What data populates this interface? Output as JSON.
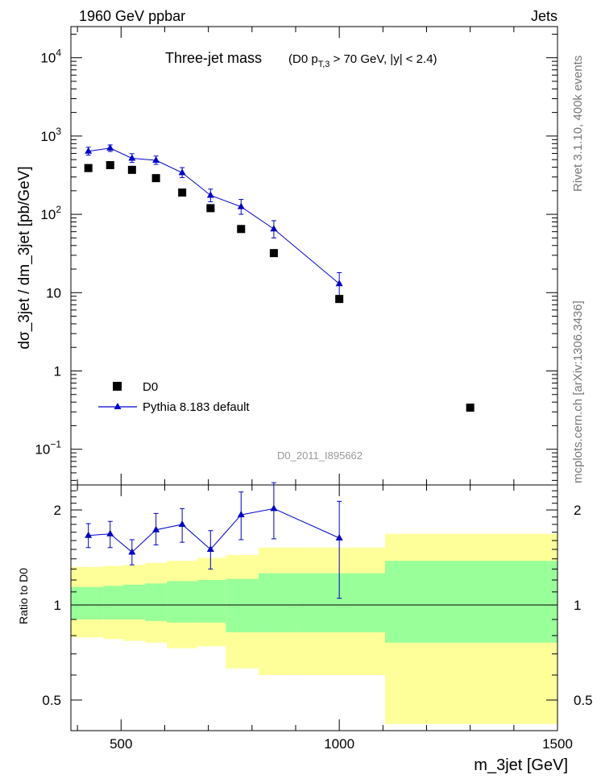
{
  "header": {
    "left": "1960 GeV ppbar",
    "right": "Jets"
  },
  "side_labels": {
    "rivet": "Rivet 3.1.10,  400k events",
    "mcplots": "mcplots.cern.ch [arXiv:1306.3436]"
  },
  "plot_title": {
    "main": "Three-jet mass",
    "cond_prefix": "(D0 p",
    "cond_sub": "T,3",
    "cond_suffix": " > 70 GeV, |y| < 2.4)"
  },
  "analysis_id": "D0_2011_I895662",
  "colors": {
    "data_marker": "#000000",
    "mc_line": "#0000cc",
    "band_inner": "#99ff99",
    "band_outer": "#ffff99"
  },
  "chart_data": [
    {
      "type": "scatter",
      "panel": "main",
      "ylabel": "dσ_3jet / dm_3jet [pb/GeV]",
      "yscale": "log",
      "xlim": [
        385,
        1500
      ],
      "ylim": [
        0.035,
        25000
      ],
      "yticks": [
        {
          "value": 0.1,
          "base": "10",
          "exp": "−1"
        },
        {
          "value": 1,
          "base": "1",
          "exp": ""
        },
        {
          "value": 10,
          "base": "10",
          "exp": ""
        },
        {
          "value": 100,
          "base": "10",
          "exp": "2"
        },
        {
          "value": 1000,
          "base": "10",
          "exp": "3"
        },
        {
          "value": 10000,
          "base": "10",
          "exp": "4"
        }
      ],
      "series": [
        {
          "name": "D0",
          "marker": "square",
          "x": [
            425,
            475,
            525,
            580,
            640,
            705,
            775,
            850,
            1000,
            1300
          ],
          "y": [
            390,
            425,
            370,
            290,
            190,
            120,
            65,
            32,
            8.3,
            0.34
          ]
        },
        {
          "name": "Pythia 8.183 default",
          "marker": "triangle",
          "x": [
            425,
            475,
            525,
            580,
            640,
            705,
            775,
            850,
            1000
          ],
          "y": [
            640,
            700,
            520,
            490,
            340,
            175,
            125,
            65,
            13
          ],
          "yerr_lo": [
            70,
            65,
            60,
            55,
            45,
            30,
            25,
            15,
            4
          ],
          "yerr_hi": [
            80,
            70,
            75,
            65,
            55,
            35,
            30,
            18,
            5
          ]
        }
      ]
    },
    {
      "type": "line",
      "panel": "ratio",
      "xlabel": "m_3jet [GeV]",
      "ylabel": "Ratio to D0",
      "yscale": "log",
      "xlim": [
        385,
        1500
      ],
      "ylim": [
        0.4,
        2.4
      ],
      "xticks": [
        500,
        1000,
        1500
      ],
      "yticks": [
        0.5,
        1,
        2
      ],
      "bands": {
        "edges": [
          385,
          460,
          505,
          555,
          605,
          675,
          740,
          815,
          905,
          1105,
          1500
        ],
        "inner_lo": [
          0.9,
          0.9,
          0.9,
          0.89,
          0.88,
          0.88,
          0.82,
          0.82,
          0.82,
          0.76
        ],
        "inner_hi": [
          1.14,
          1.15,
          1.16,
          1.17,
          1.19,
          1.2,
          1.21,
          1.26,
          1.26,
          1.38
        ],
        "outer_lo": [
          0.79,
          0.78,
          0.77,
          0.76,
          0.73,
          0.74,
          0.63,
          0.6,
          0.6,
          0.42
        ],
        "outer_hi": [
          1.32,
          1.33,
          1.34,
          1.36,
          1.38,
          1.41,
          1.44,
          1.52,
          1.52,
          1.68
        ]
      },
      "series": [
        {
          "name": "Pythia 8.183 default",
          "x": [
            425,
            475,
            525,
            580,
            640,
            705,
            775,
            850,
            1000
          ],
          "y": [
            1.66,
            1.68,
            1.47,
            1.73,
            1.8,
            1.5,
            1.93,
            2.02,
            1.63
          ],
          "yerr_lo": [
            0.14,
            0.16,
            0.13,
            0.18,
            0.22,
            0.2,
            0.32,
            0.4,
            0.58
          ],
          "yerr_hi": [
            0.15,
            0.16,
            0.14,
            0.22,
            0.22,
            0.22,
            0.35,
            0.42,
            0.5
          ]
        }
      ]
    }
  ]
}
